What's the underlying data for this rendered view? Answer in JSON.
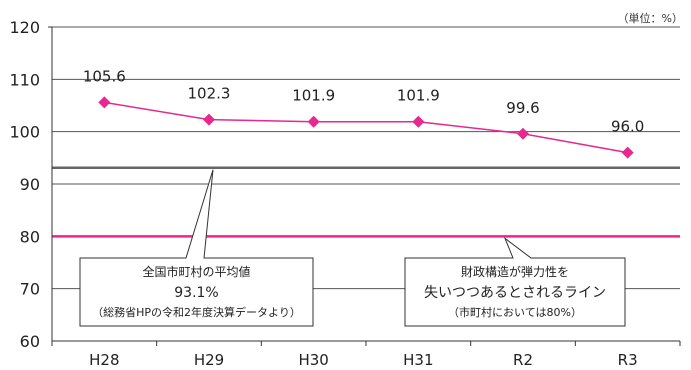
{
  "unit_label": "（単位：%）",
  "chart_data": {
    "type": "line",
    "categories": [
      "H28",
      "H29",
      "H30",
      "H31",
      "R2",
      "R3"
    ],
    "series": [
      {
        "values": [
          105.6,
          102.3,
          101.9,
          101.9,
          99.6,
          96.0
        ],
        "labels": [
          "105.6",
          "102.3",
          "101.9",
          "101.9",
          "99.6",
          "96.0"
        ]
      }
    ],
    "ylim": [
      60,
      120
    ],
    "yticks": [
      60,
      70,
      80,
      90,
      100,
      110,
      120
    ],
    "grid": true,
    "reference_lines": [
      {
        "value": 93.1,
        "color": "#666666"
      },
      {
        "value": 80,
        "color": "#e8278f"
      }
    ],
    "annotations": [
      {
        "lines": [
          "全国市町村の平均値",
          "93.1%",
          "（総務省HPの令和2年度決算データより）"
        ]
      },
      {
        "lines": [
          "財政構造が弾力性を",
          "失いつつあるとされるライン",
          "（市町村においては80%）"
        ]
      }
    ],
    "series_color": "#e8278f"
  }
}
